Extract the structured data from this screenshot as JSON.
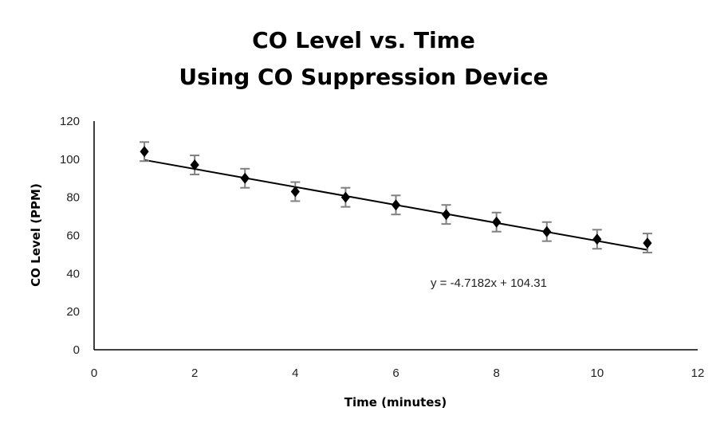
{
  "chart_data": {
    "type": "scatter",
    "title_lines": [
      "CO Level vs. Time",
      "Using CO Suppression Device"
    ],
    "xlabel": "Time (minutes)",
    "ylabel": "CO Level (PPM)",
    "xlim": [
      0,
      12
    ],
    "ylim": [
      0,
      120
    ],
    "x_ticks": [
      0,
      2,
      4,
      6,
      8,
      10,
      12
    ],
    "y_ticks": [
      0,
      20,
      40,
      60,
      80,
      100,
      120
    ],
    "grid": false,
    "legend": "none",
    "series": [
      {
        "x": [
          1,
          2,
          3,
          4,
          5,
          6,
          7,
          8,
          9,
          10,
          11
        ],
        "y": [
          104,
          97,
          90,
          83,
          80,
          76,
          71,
          67,
          62,
          58,
          56
        ],
        "error": [
          5,
          5,
          5,
          5,
          5,
          5,
          5,
          5,
          5,
          5,
          5
        ],
        "marker": "diamond",
        "marker_color": "#000000",
        "errorbar_color": "#808080"
      }
    ],
    "trendline": {
      "slope": -4.7182,
      "intercept": 104.31,
      "x_range": [
        1,
        11
      ],
      "color": "#000000",
      "equation_text": "y = -4.7182x + 104.31"
    }
  }
}
